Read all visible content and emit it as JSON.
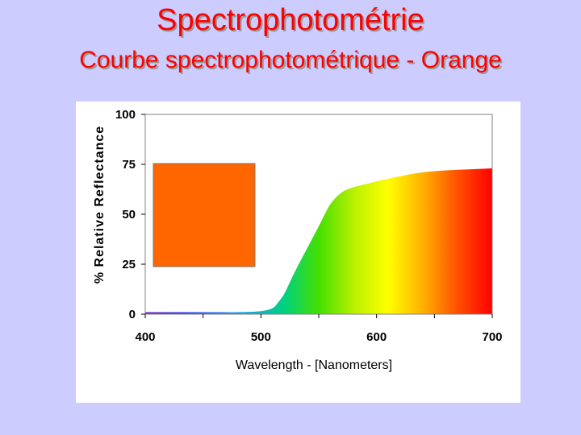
{
  "title": "Spectrophotométrie",
  "subtitle": "Courbe spectrophotométrique - Orange",
  "chart_data": {
    "type": "area",
    "xlabel": "Wavelength - [Nanometers]",
    "ylabel": "% Relative Reflectance",
    "xlim": [
      400,
      700
    ],
    "ylim": [
      0,
      100
    ],
    "xticks": [
      400,
      500,
      600,
      700
    ],
    "yticks": [
      0,
      25,
      50,
      75,
      100
    ],
    "grid": false,
    "swatch_color": "#ff6600",
    "series": [
      {
        "x": [
          400,
          420,
          440,
          460,
          480,
          500,
          510,
          515,
          520,
          525,
          530,
          540,
          550,
          560,
          570,
          580,
          590,
          600,
          620,
          640,
          660,
          680,
          700
        ],
        "values": [
          1,
          1,
          1,
          1,
          1,
          1.5,
          3,
          6,
          10,
          16,
          22,
          33,
          44,
          55,
          61,
          63.5,
          65,
          66.5,
          69,
          71,
          72,
          72.5,
          73
        ]
      }
    ]
  }
}
